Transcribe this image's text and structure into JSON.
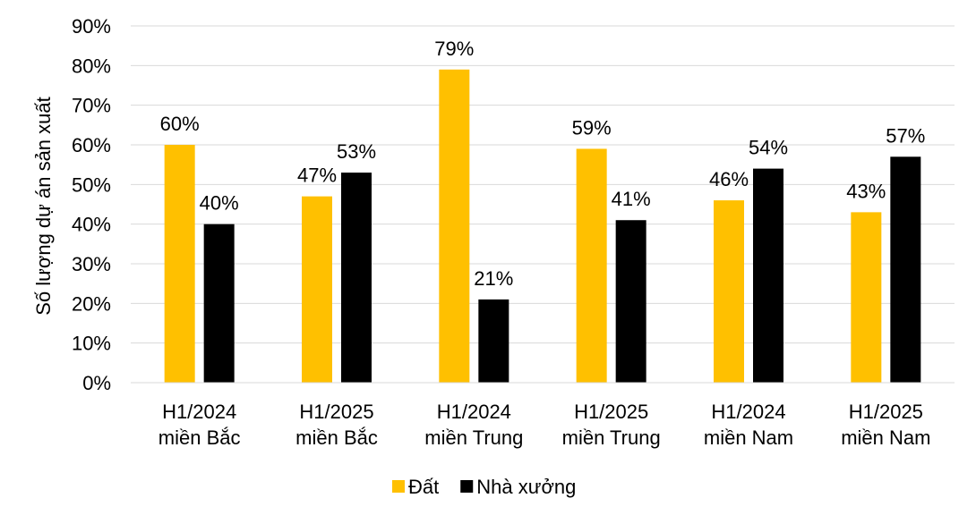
{
  "chart_data": {
    "type": "bar",
    "title": "",
    "xlabel": "",
    "ylabel": "Số lượng dự án sản xuất",
    "ylim": [
      0,
      90
    ],
    "y_ticks": [
      "0%",
      "10%",
      "20%",
      "30%",
      "40%",
      "50%",
      "60%",
      "70%",
      "80%",
      "90%"
    ],
    "categories": [
      [
        "H1/2024",
        "miền Bắc"
      ],
      [
        "H1/2025",
        "miền Bắc"
      ],
      [
        "H1/2024",
        "miền Trung"
      ],
      [
        "H1/2025",
        "miền Trung"
      ],
      [
        "H1/2024",
        "miền Nam"
      ],
      [
        "H1/2025",
        "miền Nam"
      ]
    ],
    "series": [
      {
        "name": "Đất",
        "color": "#FFC000",
        "values": [
          60,
          47,
          79,
          59,
          46,
          43
        ]
      },
      {
        "name": "Nhà xưởng",
        "color": "#000000",
        "values": [
          40,
          53,
          21,
          41,
          54,
          57
        ]
      }
    ],
    "value_suffix": "%",
    "grid": true,
    "legend_position": "bottom"
  }
}
